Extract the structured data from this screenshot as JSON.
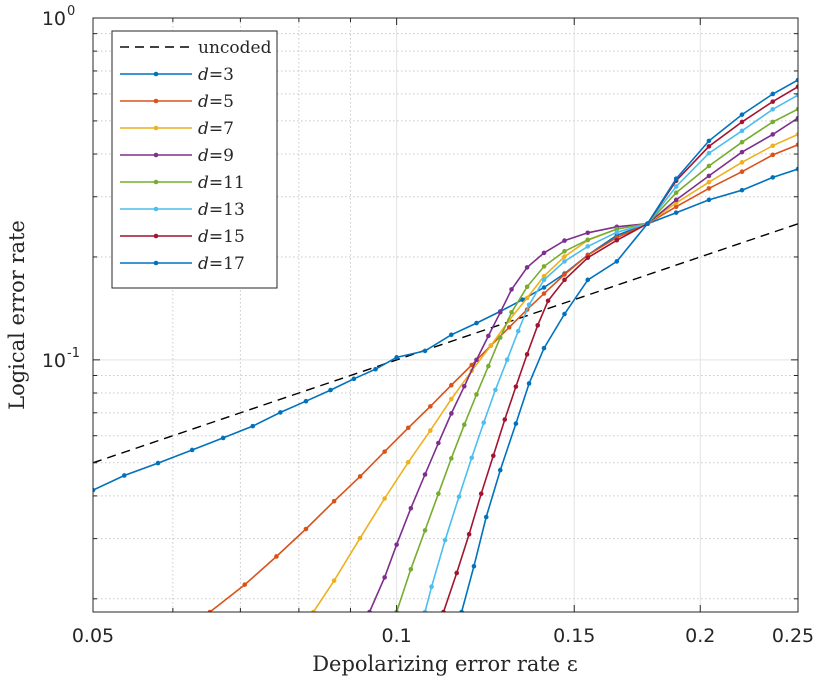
{
  "chart_data": {
    "type": "line",
    "xscale": "log",
    "yscale": "log",
    "xlim": [
      0.05,
      0.25
    ],
    "ylim": [
      0.0183,
      1.0
    ],
    "xlabel": "Depolarizing error rate ε",
    "ylabel": "Logical error rate",
    "grid": true,
    "legend_position": "top-left",
    "x_ticks": [
      {
        "value": 0.05,
        "label": "0.05"
      },
      {
        "value": 0.1,
        "label": "0.1"
      },
      {
        "value": 0.15,
        "label": "0.15"
      },
      {
        "value": 0.2,
        "label": "0.2"
      },
      {
        "value": 0.25,
        "label": "0.25"
      }
    ],
    "y_ticks": [
      {
        "value": 0.1,
        "label": "10",
        "exponent": "-1"
      },
      {
        "value": 1.0,
        "label": "10",
        "exponent": "0"
      }
    ],
    "series": [
      {
        "name": "uncoded",
        "label_prefix": "",
        "label_value": "uncoded",
        "color": "#000000",
        "dash": true,
        "markers": false,
        "points": [
          [
            0.05,
            0.05
          ],
          [
            0.25,
            0.25
          ]
        ]
      },
      {
        "name": "d=3",
        "label_prefix": "d",
        "label_value": "=3",
        "color": "#0072BD",
        "dash": false,
        "markers": true,
        "points": [
          [
            0.05,
            0.0416
          ],
          [
            0.0537,
            0.0459
          ],
          [
            0.058,
            0.0499
          ],
          [
            0.0627,
            0.0545
          ],
          [
            0.0673,
            0.0591
          ],
          [
            0.072,
            0.064
          ],
          [
            0.0767,
            0.0702
          ],
          [
            0.0813,
            0.0757
          ],
          [
            0.086,
            0.0816
          ],
          [
            0.0907,
            0.088
          ],
          [
            0.0953,
            0.0939
          ],
          [
            0.1,
            0.1017
          ],
          [
            0.1067,
            0.1062
          ],
          [
            0.1133,
            0.1184
          ],
          [
            0.12,
            0.1281
          ],
          [
            0.1267,
            0.1386
          ],
          [
            0.1333,
            0.15
          ],
          [
            0.14,
            0.1628
          ],
          [
            0.1467,
            0.1788
          ],
          [
            0.1547,
            0.2027
          ],
          [
            0.1653,
            0.2312
          ],
          [
            0.1773,
            0.2502
          ],
          [
            0.1893,
            0.2695
          ],
          [
            0.204,
            0.2938
          ],
          [
            0.22,
            0.3136
          ],
          [
            0.236,
            0.3418
          ],
          [
            0.25,
            0.3617
          ]
        ]
      },
      {
        "name": "d=5",
        "label_prefix": "d",
        "label_value": "=5",
        "color": "#D95319",
        "dash": false,
        "markers": true,
        "points": [
          [
            0.0653,
            0.0183
          ],
          [
            0.0707,
            0.022
          ],
          [
            0.076,
            0.0266
          ],
          [
            0.0813,
            0.032
          ],
          [
            0.0867,
            0.0386
          ],
          [
            0.092,
            0.0456
          ],
          [
            0.0973,
            0.0539
          ],
          [
            0.1027,
            0.0633
          ],
          [
            0.108,
            0.0731
          ],
          [
            0.1133,
            0.0843
          ],
          [
            0.1187,
            0.0966
          ],
          [
            0.124,
            0.1101
          ],
          [
            0.1293,
            0.1245
          ],
          [
            0.1347,
            0.1403
          ],
          [
            0.14,
            0.1563
          ],
          [
            0.1467,
            0.1777
          ],
          [
            0.1547,
            0.2027
          ],
          [
            0.1653,
            0.2278
          ],
          [
            0.1773,
            0.2502
          ],
          [
            0.1893,
            0.2805
          ],
          [
            0.204,
            0.3173
          ],
          [
            0.22,
            0.3551
          ],
          [
            0.236,
            0.3978
          ],
          [
            0.25,
            0.426
          ]
        ]
      },
      {
        "name": "d=7",
        "label_prefix": "d",
        "label_value": "=7",
        "color": "#EDB120",
        "dash": false,
        "markers": true,
        "points": [
          [
            0.0827,
            0.0183
          ],
          [
            0.0867,
            0.0226
          ],
          [
            0.092,
            0.0301
          ],
          [
            0.0973,
            0.0393
          ],
          [
            0.1027,
            0.0502
          ],
          [
            0.108,
            0.0621
          ],
          [
            0.1133,
            0.0768
          ],
          [
            0.1187,
            0.0929
          ],
          [
            0.124,
            0.1101
          ],
          [
            0.1293,
            0.1307
          ],
          [
            0.1347,
            0.1517
          ],
          [
            0.14,
            0.1757
          ],
          [
            0.1467,
            0.2005
          ],
          [
            0.1547,
            0.2238
          ],
          [
            0.1653,
            0.2412
          ],
          [
            0.1773,
            0.2502
          ],
          [
            0.1893,
            0.2878
          ],
          [
            0.204,
            0.331
          ],
          [
            0.22,
            0.3783
          ],
          [
            0.236,
            0.423
          ],
          [
            0.25,
            0.4566
          ]
        ]
      },
      {
        "name": "d=9",
        "label_prefix": "d",
        "label_value": "=9",
        "color": "#7E2F8E",
        "dash": false,
        "markers": true,
        "points": [
          [
            0.094,
            0.0183
          ],
          [
            0.0973,
            0.0231
          ],
          [
            0.1,
            0.0288
          ],
          [
            0.1033,
            0.0368
          ],
          [
            0.1067,
            0.0462
          ],
          [
            0.11,
            0.0571
          ],
          [
            0.1133,
            0.0697
          ],
          [
            0.1167,
            0.0837
          ],
          [
            0.12,
            0.1
          ],
          [
            0.1233,
            0.1175
          ],
          [
            0.1267,
            0.1378
          ],
          [
            0.13,
            0.1607
          ],
          [
            0.1347,
            0.1864
          ],
          [
            0.14,
            0.2055
          ],
          [
            0.1467,
            0.2233
          ],
          [
            0.1547,
            0.2354
          ],
          [
            0.1653,
            0.245
          ],
          [
            0.1773,
            0.2502
          ],
          [
            0.1893,
            0.2938
          ],
          [
            0.204,
            0.3452
          ],
          [
            0.22,
            0.4052
          ],
          [
            0.236,
            0.4566
          ],
          [
            0.25,
            0.5094
          ]
        ]
      },
      {
        "name": "d=11",
        "label_prefix": "d",
        "label_value": "=11",
        "color": "#77AC30",
        "dash": false,
        "markers": true,
        "points": [
          [
            0.1,
            0.0183
          ],
          [
            0.1033,
            0.0244
          ],
          [
            0.1067,
            0.0317
          ],
          [
            0.11,
            0.0406
          ],
          [
            0.1133,
            0.0515
          ],
          [
            0.1167,
            0.0646
          ],
          [
            0.12,
            0.0792
          ],
          [
            0.1233,
            0.0959
          ],
          [
            0.1267,
            0.1163
          ],
          [
            0.13,
            0.1378
          ],
          [
            0.1347,
            0.1636
          ],
          [
            0.14,
            0.1877
          ],
          [
            0.1467,
            0.2078
          ],
          [
            0.1547,
            0.2245
          ],
          [
            0.1653,
            0.2412
          ],
          [
            0.1773,
            0.2502
          ],
          [
            0.1893,
            0.3083
          ],
          [
            0.204,
            0.3691
          ],
          [
            0.22,
            0.4333
          ],
          [
            0.236,
            0.4966
          ],
          [
            0.25,
            0.5413
          ]
        ]
      },
      {
        "name": "d=13",
        "label_prefix": "d",
        "label_value": "=13",
        "color": "#4DBEEE",
        "dash": false,
        "markers": true,
        "points": [
          [
            0.1067,
            0.0183
          ],
          [
            0.1083,
            0.0217
          ],
          [
            0.1117,
            0.0297
          ],
          [
            0.1153,
            0.0398
          ],
          [
            0.1187,
            0.0517
          ],
          [
            0.122,
            0.0655
          ],
          [
            0.1253,
            0.0817
          ],
          [
            0.1287,
            0.1001
          ],
          [
            0.132,
            0.1214
          ],
          [
            0.1353,
            0.1449
          ],
          [
            0.14,
            0.1714
          ],
          [
            0.1467,
            0.1941
          ],
          [
            0.1547,
            0.2147
          ],
          [
            0.1653,
            0.2361
          ],
          [
            0.1773,
            0.2502
          ],
          [
            0.1893,
            0.3214
          ],
          [
            0.204,
            0.4023
          ],
          [
            0.22,
            0.4677
          ],
          [
            0.236,
            0.5407
          ],
          [
            0.25,
            0.595
          ]
        ]
      },
      {
        "name": "d=15",
        "label_prefix": "d",
        "label_value": "=15",
        "color": "#A2142F",
        "dash": false,
        "markers": true,
        "points": [
          [
            0.1113,
            0.0183
          ],
          [
            0.1147,
            0.0238
          ],
          [
            0.118,
            0.0309
          ],
          [
            0.1213,
            0.0406
          ],
          [
            0.1247,
            0.0524
          ],
          [
            0.128,
            0.0669
          ],
          [
            0.1313,
            0.0835
          ],
          [
            0.1347,
            0.1038
          ],
          [
            0.138,
            0.1262
          ],
          [
            0.1413,
            0.1489
          ],
          [
            0.1467,
            0.1714
          ],
          [
            0.1547,
            0.199
          ],
          [
            0.1653,
            0.2238
          ],
          [
            0.1773,
            0.2502
          ],
          [
            0.1893,
            0.3342
          ],
          [
            0.204,
            0.4212
          ],
          [
            0.22,
            0.4966
          ],
          [
            0.236,
            0.5693
          ],
          [
            0.25,
            0.6296
          ]
        ]
      },
      {
        "name": "d=17",
        "label_prefix": "d",
        "label_value": "=17",
        "color": "#0072BD",
        "dash": false,
        "markers": true,
        "points": [
          [
            0.116,
            0.0183
          ],
          [
            0.1193,
            0.0249
          ],
          [
            0.1227,
            0.0347
          ],
          [
            0.1267,
            0.0476
          ],
          [
            0.1313,
            0.0651
          ],
          [
            0.1353,
            0.0853
          ],
          [
            0.14,
            0.1082
          ],
          [
            0.1467,
            0.1362
          ],
          [
            0.1547,
            0.1714
          ],
          [
            0.1653,
            0.1941
          ],
          [
            0.1773,
            0.2502
          ],
          [
            0.1893,
            0.3388
          ],
          [
            0.204,
            0.4371
          ],
          [
            0.22,
            0.5216
          ],
          [
            0.236,
            0.5995
          ],
          [
            0.25,
            0.6586
          ]
        ]
      }
    ]
  }
}
